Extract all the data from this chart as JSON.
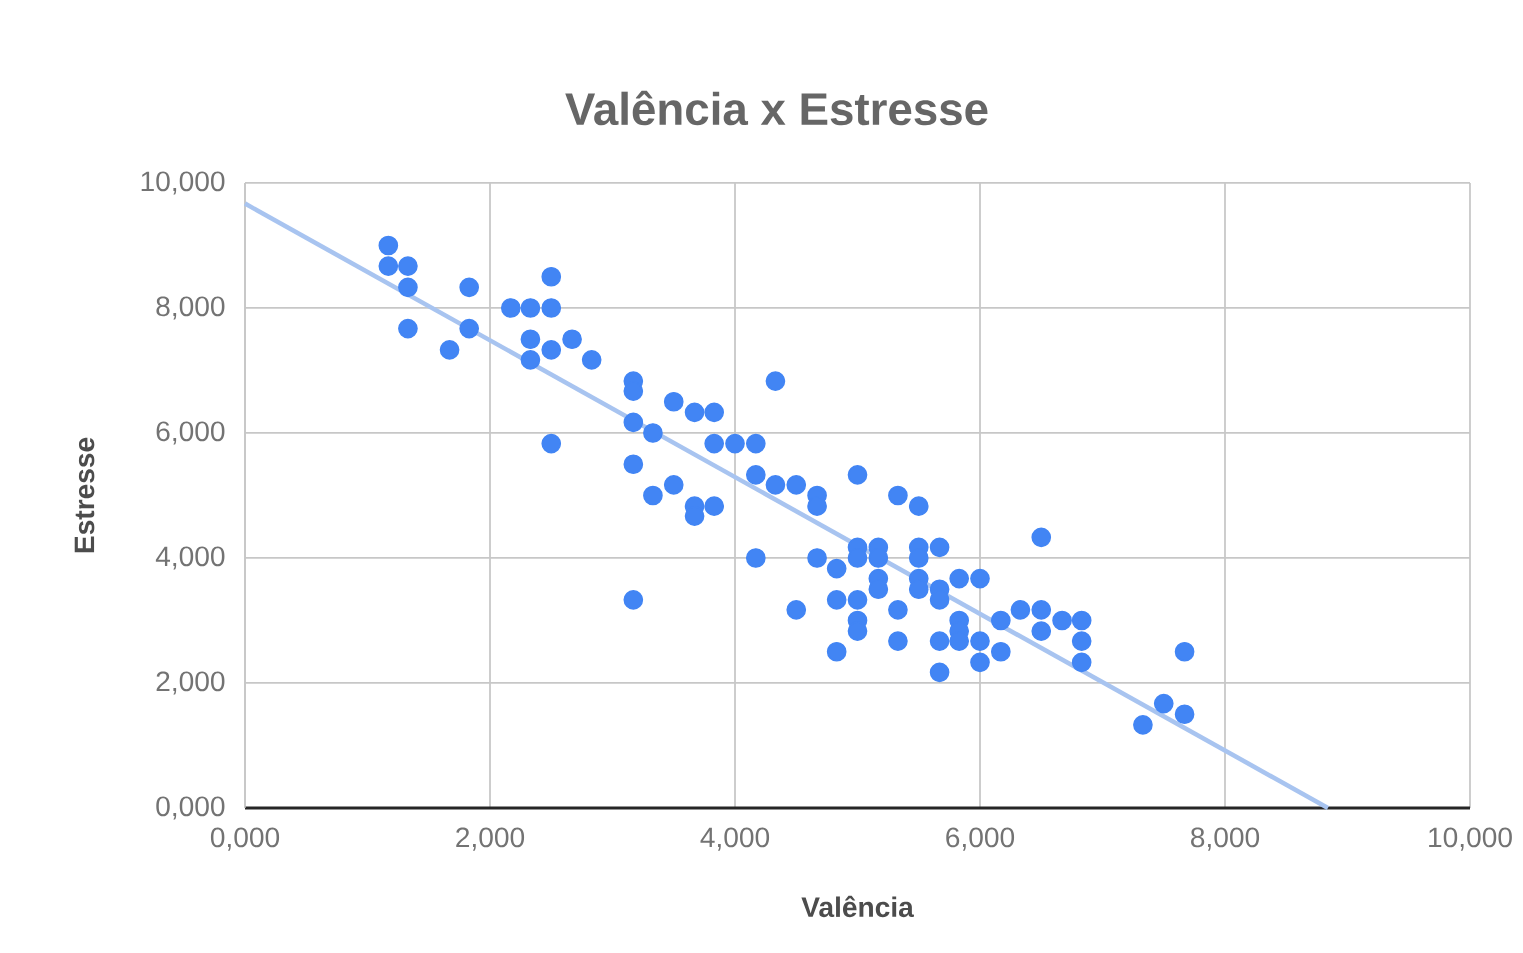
{
  "chart_data": {
    "type": "scatter",
    "title": "Valência x Estresse",
    "xlabel": "Valência",
    "ylabel": "Estresse",
    "xlim": [
      0,
      10
    ],
    "ylim": [
      0,
      10
    ],
    "xticks": [
      {
        "value": 0,
        "label": "0,000"
      },
      {
        "value": 2,
        "label": "2,000"
      },
      {
        "value": 4,
        "label": "4,000"
      },
      {
        "value": 6,
        "label": "6,000"
      },
      {
        "value": 8,
        "label": "8,000"
      },
      {
        "value": 10,
        "label": "10,000"
      }
    ],
    "yticks": [
      {
        "value": 0,
        "label": "0,000"
      },
      {
        "value": 2,
        "label": "2,000"
      },
      {
        "value": 4,
        "label": "4,000"
      },
      {
        "value": 6,
        "label": "6,000"
      },
      {
        "value": 8,
        "label": "8,000"
      },
      {
        "value": 10,
        "label": "10,000"
      }
    ],
    "grid": true,
    "series": [
      {
        "color": "#4285f4",
        "marker": "circle",
        "x": [
          1.17,
          1.17,
          1.33,
          1.33,
          1.33,
          1.67,
          1.83,
          1.83,
          2.17,
          2.33,
          2.5,
          2.5,
          2.33,
          2.33,
          2.5,
          2.67,
          2.83,
          2.5,
          3.17,
          3.17,
          3.17,
          3.17,
          3.17,
          3.33,
          3.33,
          3.5,
          3.5,
          3.67,
          3.67,
          3.67,
          3.83,
          3.83,
          3.83,
          4,
          4.17,
          4.17,
          4.17,
          4.33,
          4.33,
          4.5,
          4.5,
          4.67,
          4.67,
          4.67,
          4.83,
          4.83,
          4.83,
          5,
          5,
          5,
          5,
          5,
          5,
          5.17,
          5.17,
          5.17,
          5.17,
          5.33,
          5.33,
          5.33,
          5.5,
          5.5,
          5.5,
          5.5,
          5.5,
          5.67,
          5.67,
          5.67,
          5.67,
          5.67,
          5.83,
          5.83,
          5.83,
          5.83,
          6,
          6,
          6,
          6.17,
          6.17,
          6.33,
          6.5,
          6.5,
          6.5,
          6.67,
          6.83,
          6.83,
          6.83,
          7.33,
          7.5,
          7.67,
          7.67
        ],
        "values": [
          9,
          8.67,
          8.67,
          8.33,
          7.67,
          7.33,
          8.33,
          7.67,
          8,
          8,
          8,
          8.5,
          7.5,
          7.17,
          7.33,
          7.5,
          7.17,
          5.83,
          6.83,
          6.67,
          6.17,
          5.5,
          3.33,
          6,
          5,
          6.5,
          5.17,
          6.33,
          4.83,
          4.67,
          6.33,
          5.83,
          4.83,
          5.83,
          5.83,
          5.33,
          4,
          6.83,
          5.17,
          5.17,
          3.17,
          5,
          4.83,
          4,
          3.83,
          3.33,
          2.5,
          5.33,
          4.17,
          4,
          3.33,
          3,
          2.83,
          4.17,
          4,
          3.67,
          3.5,
          5,
          3.17,
          2.67,
          4.83,
          4.17,
          4,
          3.67,
          3.5,
          4.17,
          3.5,
          3.33,
          2.67,
          2.17,
          3.67,
          3,
          2.83,
          2.67,
          3.67,
          2.67,
          2.33,
          3,
          2.5,
          3.17,
          4.33,
          3.17,
          2.83,
          3,
          3,
          2.67,
          2.33,
          1.33,
          1.67,
          2.5,
          1.5
        ]
      },
      {
        "type": "line",
        "color": "#a8c4f0",
        "marker": "none",
        "x": [
          0,
          8.84
        ],
        "values": [
          9.67,
          0
        ]
      }
    ]
  }
}
